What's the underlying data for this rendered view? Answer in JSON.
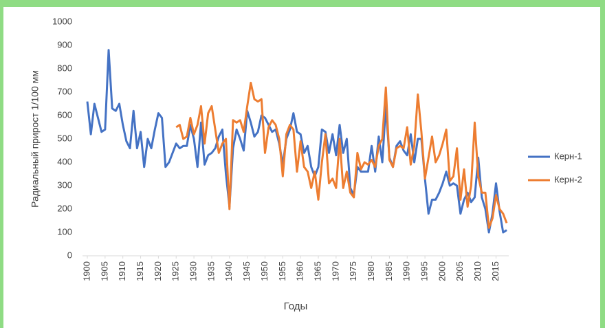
{
  "chart_data": {
    "type": "line",
    "y_label": "Радиальный прирост 1/100 мм",
    "x_label": "Годы",
    "x": [
      1900,
      1901,
      1902,
      1903,
      1904,
      1905,
      1906,
      1907,
      1908,
      1909,
      1910,
      1911,
      1912,
      1913,
      1914,
      1915,
      1916,
      1917,
      1918,
      1919,
      1920,
      1921,
      1922,
      1923,
      1924,
      1925,
      1926,
      1927,
      1928,
      1929,
      1930,
      1931,
      1932,
      1933,
      1934,
      1935,
      1936,
      1937,
      1938,
      1939,
      1940,
      1941,
      1942,
      1943,
      1944,
      1945,
      1946,
      1947,
      1948,
      1949,
      1950,
      1951,
      1952,
      1953,
      1954,
      1955,
      1956,
      1957,
      1958,
      1959,
      1960,
      1961,
      1962,
      1963,
      1964,
      1965,
      1966,
      1967,
      1968,
      1969,
      1970,
      1971,
      1972,
      1973,
      1974,
      1975,
      1976,
      1977,
      1978,
      1979,
      1980,
      1981,
      1982,
      1983,
      1984,
      1985,
      1986,
      1987,
      1988,
      1989,
      1990,
      1991,
      1992,
      1993,
      1994,
      1995,
      1996,
      1997,
      1998,
      1999,
      2000,
      2001,
      2002,
      2003,
      2004,
      2005,
      2006,
      2007,
      2008,
      2009,
      2010,
      2011,
      2012,
      2013,
      2014,
      2015,
      2016,
      2017,
      2018
    ],
    "series": [
      {
        "name": "Керн-1",
        "color": "#4472c4",
        "values": [
          660,
          520,
          650,
          590,
          530,
          540,
          880,
          630,
          620,
          650,
          560,
          490,
          460,
          620,
          460,
          530,
          380,
          500,
          460,
          540,
          610,
          590,
          380,
          400,
          440,
          480,
          460,
          470,
          470,
          560,
          500,
          380,
          570,
          390,
          430,
          440,
          460,
          510,
          540,
          350,
          210,
          460,
          540,
          500,
          450,
          620,
          570,
          510,
          530,
          600,
          590,
          560,
          530,
          540,
          480,
          390,
          500,
          540,
          610,
          530,
          520,
          440,
          470,
          380,
          340,
          380,
          540,
          530,
          440,
          520,
          430,
          560,
          440,
          500,
          290,
          260,
          380,
          360,
          360,
          360,
          470,
          360,
          510,
          400,
          640,
          420,
          380,
          470,
          490,
          450,
          430,
          520,
          400,
          500,
          500,
          330,
          180,
          240,
          240,
          270,
          310,
          360,
          300,
          310,
          300,
          180,
          240,
          270,
          230,
          250,
          420,
          250,
          200,
          100,
          180,
          310,
          190,
          100,
          110
        ]
      },
      {
        "name": "Керн-2",
        "color": "#ed7d31",
        "values": [
          null,
          null,
          null,
          null,
          null,
          null,
          null,
          null,
          null,
          null,
          null,
          null,
          null,
          null,
          null,
          null,
          null,
          null,
          null,
          null,
          null,
          null,
          null,
          null,
          null,
          550,
          560,
          500,
          510,
          590,
          520,
          560,
          640,
          480,
          610,
          640,
          540,
          440,
          480,
          500,
          200,
          580,
          570,
          580,
          530,
          640,
          740,
          670,
          660,
          670,
          440,
          550,
          580,
          560,
          500,
          340,
          520,
          560,
          540,
          360,
          490,
          380,
          360,
          290,
          360,
          240,
          400,
          520,
          310,
          330,
          290,
          500,
          290,
          360,
          270,
          250,
          440,
          370,
          400,
          390,
          410,
          380,
          470,
          500,
          720,
          410,
          380,
          460,
          470,
          460,
          550,
          390,
          470,
          690,
          530,
          330,
          420,
          510,
          400,
          430,
          480,
          540,
          320,
          340,
          460,
          240,
          370,
          210,
          300,
          570,
          340,
          270,
          270,
          120,
          160,
          260,
          200,
          180,
          140
        ]
      }
    ],
    "xlim": [
      1900,
      2018
    ],
    "xticks": [
      1900,
      1905,
      1910,
      1915,
      1920,
      1925,
      1930,
      1935,
      1940,
      1945,
      1950,
      1955,
      1960,
      1965,
      1970,
      1975,
      1980,
      1985,
      1990,
      1995,
      2000,
      2005,
      2010,
      2015
    ],
    "ylim": [
      0,
      1000
    ],
    "yticks": [
      0,
      100,
      200,
      300,
      400,
      500,
      600,
      700,
      800,
      900,
      1000
    ],
    "grid": false,
    "legend": "right"
  }
}
